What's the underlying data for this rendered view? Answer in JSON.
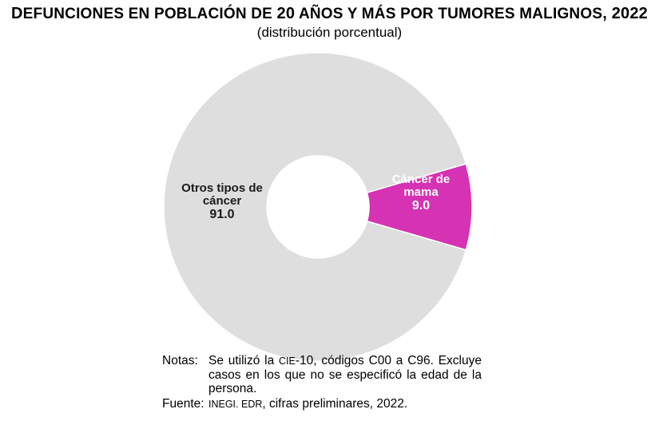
{
  "chart_data": {
    "type": "pie",
    "donut": true,
    "title_first": "D",
    "title_rest": "EFUNCIONES EN POBLACIÓN DE ",
    "title_num": "20",
    "title_mid": " AÑOS Y MÁS POR TUMORES MALIGNOS",
    "title_year": ", 2022",
    "subtitle": "(distribución porcentual)",
    "slices": [
      {
        "label_line1": "Otros tipos de",
        "label_line2": "cáncer",
        "value": 91.0,
        "value_text": "91.0",
        "color": "#dedede"
      },
      {
        "label_line1": "Cáncer de",
        "label_line2": "mama",
        "value": 9.0,
        "value_text": "9.0",
        "color": "#d632b4"
      }
    ]
  },
  "notes": {
    "notas_label": "Notas:",
    "notas_text_a": "Se utilizó la ",
    "notas_cie": "CIE",
    "notas_text_b": "-10, códigos C00 a C96. Excluye casos en los que no se especificó la edad de la persona.",
    "fuente_label": "Fuente:",
    "fuente_inegi": "INEGI. EDR",
    "fuente_text": ", cifras preliminares, 2022."
  }
}
